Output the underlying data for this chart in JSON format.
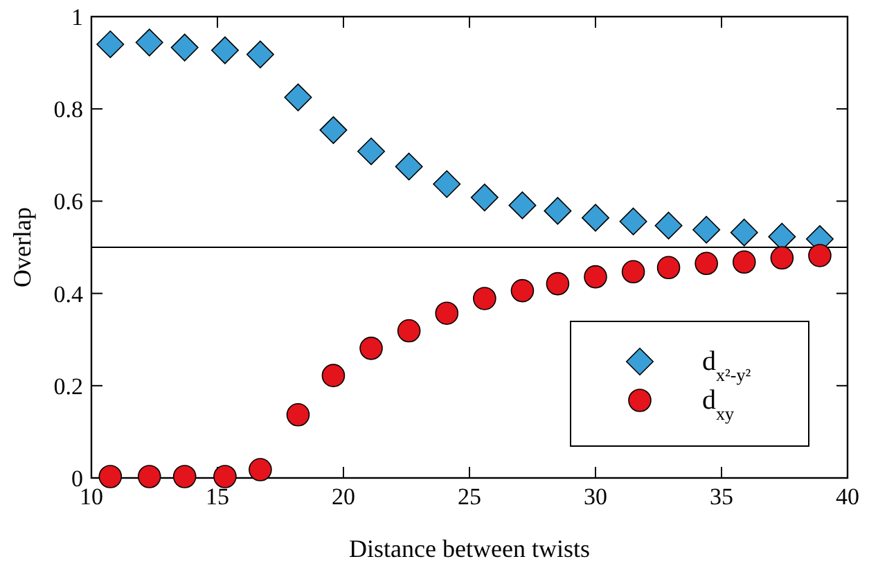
{
  "chart_data": {
    "type": "scatter",
    "xlabel": "Distance between twists",
    "ylabel": "Overlap",
    "x": [
      10.75,
      12.3,
      13.7,
      15.3,
      16.7,
      18.2,
      19.6,
      21.1,
      22.6,
      24.1,
      25.6,
      27.1,
      28.5,
      30.0,
      31.5,
      32.9,
      34.4,
      35.9,
      37.4,
      38.9
    ],
    "xlim": [
      10,
      40
    ],
    "xticks": [
      10,
      15,
      20,
      25,
      30,
      35,
      40
    ],
    "ylim": [
      0,
      1
    ],
    "yticks": [
      0,
      0.2,
      0.4,
      0.6,
      0.8,
      1
    ],
    "series": [
      {
        "name": "d$_{x²-y²}$",
        "color": "#3a9fd6",
        "marker": "diamond",
        "values": [
          0.94,
          0.944,
          0.933,
          0.927,
          0.918,
          0.825,
          0.754,
          0.708,
          0.675,
          0.637,
          0.608,
          0.591,
          0.579,
          0.564,
          0.556,
          0.547,
          0.538,
          0.532,
          0.523,
          0.518
        ]
      },
      {
        "name": "d$_{xy}$",
        "color": "#e3141c",
        "marker": "circle",
        "values": [
          0.003,
          0.003,
          0.003,
          0.003,
          0.018,
          0.137,
          0.222,
          0.281,
          0.319,
          0.357,
          0.389,
          0.406,
          0.421,
          0.436,
          0.447,
          0.456,
          0.465,
          0.468,
          0.477,
          0.482
        ]
      }
    ],
    "ref_lines": [
      {
        "axis": "y",
        "value": 0.5,
        "color": "#000000"
      }
    ],
    "legend": "bottom right",
    "grid": false
  }
}
